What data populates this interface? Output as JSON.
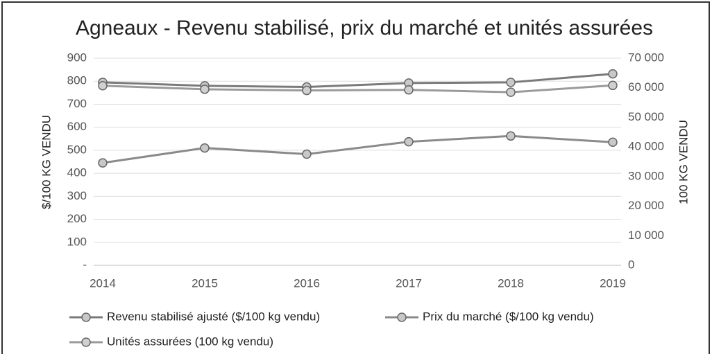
{
  "chart_data": {
    "type": "line",
    "title": "Agneaux - Revenu stabilisé, prix du marché et unités assurées",
    "ylabel": "$/100 KG VENDU",
    "y2label": "100 KG VENDU",
    "categories": [
      "2014",
      "2015",
      "2016",
      "2017",
      "2018",
      "2019"
    ],
    "series": [
      {
        "name": "Revenu stabilisé ajusté ($/100 kg vendu)",
        "color": "#7a7a7a",
        "marker": "#c8c8c8",
        "values": [
          795,
          780,
          775,
          792,
          795,
          832
        ]
      },
      {
        "name": "Prix du marché ($/100 kg vendu)",
        "color": "#8a8a8a",
        "marker": "#c8c8c8",
        "values": [
          445,
          510,
          483,
          537,
          562,
          535
        ]
      },
      {
        "name": "Unités assurées (100 kg vendu)",
        "color": "#9a9a9a",
        "marker": "#d0d0d0",
        "axis": "y2",
        "values": [
          60700,
          59500,
          59100,
          59300,
          58500,
          60800
        ]
      }
    ],
    "ylim": [
      0,
      900
    ],
    "yticks": [
      {
        "value": 0,
        "label": "-"
      },
      100,
      200,
      300,
      400,
      500,
      600,
      700,
      800,
      900
    ],
    "y2lim": [
      0,
      70000
    ],
    "y2ticks": [
      0,
      {
        "value": 10000,
        "label": "10 000"
      },
      {
        "value": 20000,
        "label": "20 000"
      },
      {
        "value": 30000,
        "label": "30 000"
      },
      {
        "value": 40000,
        "label": "40 000"
      },
      {
        "value": 50000,
        "label": "50 000"
      },
      {
        "value": 60000,
        "label": "60 000"
      },
      {
        "value": 70000,
        "label": "70 000"
      }
    ],
    "grid": true,
    "legend": "bottom"
  }
}
